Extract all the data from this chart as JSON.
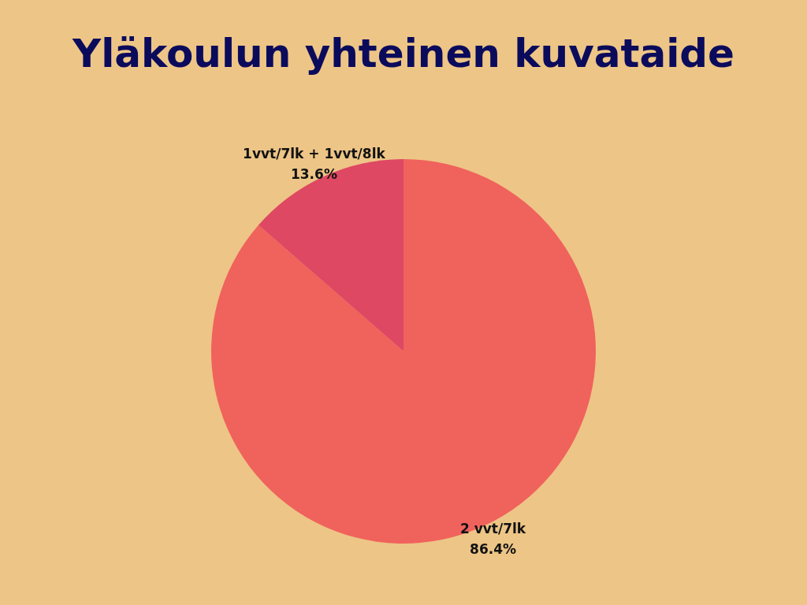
{
  "chart_data": {
    "type": "pie",
    "title": "Yläkoulun yhteinen kuvataide",
    "categories": [
      "2 vvt/7lk",
      "1vvt/7lk + 1vvt/8lk"
    ],
    "values": [
      86.4,
      13.6
    ],
    "value_labels": [
      "86.4%",
      "13.6%"
    ],
    "colors": [
      "#f0625c",
      "#de4863"
    ],
    "legend": false
  }
}
